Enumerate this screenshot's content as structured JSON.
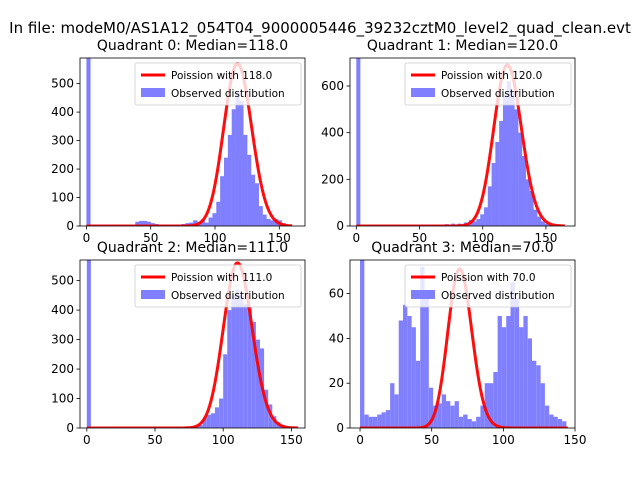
{
  "suptitle": "In file: modeM0/AS1A12_054T04_9000005446_39232cztM0_level2_quad_clean.evt",
  "colors": {
    "poisson": "#ff0000",
    "observed": "#8080ff"
  },
  "chart_data": [
    {
      "type": "bar",
      "title": "Quadrant 0: Median=118.0",
      "median": 118.0,
      "xlim": [
        -5,
        170
      ],
      "ylim": [
        0,
        590
      ],
      "xticks": [
        0,
        50,
        100,
        150
      ],
      "yticks": [
        0,
        100,
        200,
        300,
        400,
        500
      ],
      "bin_width": 3.2,
      "hist": [
        [
          0,
          590
        ],
        [
          35,
          5
        ],
        [
          38,
          15
        ],
        [
          41,
          18
        ],
        [
          44,
          18
        ],
        [
          47,
          15
        ],
        [
          50,
          10
        ],
        [
          53,
          7
        ],
        [
          56,
          5
        ],
        [
          59,
          5
        ],
        [
          62,
          4
        ],
        [
          65,
          4
        ],
        [
          68,
          5
        ],
        [
          71,
          5
        ],
        [
          74,
          7
        ],
        [
          77,
          10
        ],
        [
          80,
          12
        ],
        [
          83,
          20
        ],
        [
          86,
          15
        ],
        [
          89,
          22
        ],
        [
          92,
          12
        ],
        [
          95,
          30
        ],
        [
          98,
          45
        ],
        [
          101,
          85
        ],
        [
          104,
          175
        ],
        [
          107,
          240
        ],
        [
          110,
          320
        ],
        [
          113,
          410
        ],
        [
          116,
          470
        ],
        [
          119,
          440
        ],
        [
          122,
          320
        ],
        [
          125,
          250
        ],
        [
          128,
          180
        ],
        [
          131,
          150
        ],
        [
          134,
          70
        ],
        [
          137,
          40
        ],
        [
          140,
          25
        ],
        [
          143,
          20
        ],
        [
          146,
          25
        ],
        [
          149,
          20
        ],
        [
          152,
          10
        ],
        [
          155,
          5
        ]
      ],
      "poisson_lambda": 118.0,
      "poisson_scale": 570,
      "poisson_range": [
        0,
        160
      ],
      "legend": [
        "Poission with 118.0",
        "Observed distribution"
      ]
    },
    {
      "type": "bar",
      "title": "Quadrant 1: Median=120.0",
      "median": 120.0,
      "xlim": [
        -5,
        173
      ],
      "ylim": [
        0,
        720
      ],
      "xticks": [
        0,
        50,
        100,
        150
      ],
      "yticks": [
        0,
        200,
        400,
        600
      ],
      "bin_width": 3.2,
      "hist": [
        [
          0,
          720
        ],
        [
          52,
          5
        ],
        [
          60,
          5
        ],
        [
          65,
          5
        ],
        [
          70,
          8
        ],
        [
          75,
          10
        ],
        [
          80,
          10
        ],
        [
          85,
          15
        ],
        [
          89,
          25
        ],
        [
          92,
          20
        ],
        [
          95,
          30
        ],
        [
          98,
          50
        ],
        [
          101,
          80
        ],
        [
          104,
          170
        ],
        [
          107,
          270
        ],
        [
          110,
          360
        ],
        [
          113,
          450
        ],
        [
          116,
          560
        ],
        [
          119,
          620
        ],
        [
          122,
          580
        ],
        [
          125,
          500
        ],
        [
          128,
          400
        ],
        [
          131,
          300
        ],
        [
          134,
          200
        ],
        [
          137,
          150
        ],
        [
          140,
          70
        ],
        [
          143,
          40
        ],
        [
          146,
          20
        ],
        [
          149,
          10
        ],
        [
          152,
          5
        ]
      ],
      "poisson_lambda": 120.0,
      "poisson_scale": 690,
      "poisson_range": [
        0,
        165
      ],
      "legend": [
        "Poission with 120.0",
        "Observed distribution"
      ]
    },
    {
      "type": "bar",
      "title": "Quadrant 2: Median=111.0",
      "median": 111.0,
      "xlim": [
        -5,
        160
      ],
      "ylim": [
        0,
        570
      ],
      "xticks": [
        0,
        50,
        100,
        150
      ],
      "yticks": [
        0,
        100,
        200,
        300,
        400,
        500
      ],
      "bin_width": 3.0,
      "hist": [
        [
          0,
          570
        ],
        [
          70,
          3
        ],
        [
          73,
          5
        ],
        [
          76,
          5
        ],
        [
          79,
          5
        ],
        [
          82,
          10
        ],
        [
          85,
          35
        ],
        [
          88,
          45
        ],
        [
          91,
          50
        ],
        [
          94,
          70
        ],
        [
          97,
          100
        ],
        [
          100,
          250
        ],
        [
          103,
          400
        ],
        [
          106,
          450
        ],
        [
          109,
          470
        ],
        [
          112,
          450
        ],
        [
          115,
          420
        ],
        [
          118,
          410
        ],
        [
          121,
          360
        ],
        [
          124,
          300
        ],
        [
          127,
          270
        ],
        [
          130,
          130
        ],
        [
          133,
          80
        ],
        [
          136,
          40
        ],
        [
          139,
          20
        ],
        [
          142,
          10
        ]
      ],
      "poisson_lambda": 111.0,
      "poisson_scale": 560,
      "poisson_range": [
        0,
        155
      ],
      "legend": [
        "Poission with 111.0",
        "Observed distribution"
      ]
    },
    {
      "type": "bar",
      "title": "Quadrant 3: Median=70.0",
      "median": 70.0,
      "xlim": [
        -7,
        150
      ],
      "ylim": [
        0,
        75
      ],
      "xticks": [
        0,
        50,
        100,
        150
      ],
      "yticks": [
        0,
        20,
        40,
        60
      ],
      "bin_width": 3.0,
      "hist": [
        [
          0,
          75
        ],
        [
          3,
          6
        ],
        [
          6,
          5
        ],
        [
          9,
          5
        ],
        [
          12,
          6
        ],
        [
          15,
          7
        ],
        [
          18,
          8
        ],
        [
          21,
          20
        ],
        [
          24,
          15
        ],
        [
          27,
          48
        ],
        [
          30,
          55
        ],
        [
          33,
          50
        ],
        [
          36,
          45
        ],
        [
          39,
          30
        ],
        [
          42,
          72
        ],
        [
          45,
          60
        ],
        [
          48,
          18
        ],
        [
          51,
          10
        ],
        [
          54,
          11
        ],
        [
          57,
          15
        ],
        [
          60,
          12
        ],
        [
          63,
          10
        ],
        [
          66,
          12
        ],
        [
          69,
          5
        ],
        [
          72,
          6
        ],
        [
          75,
          4
        ],
        [
          78,
          3
        ],
        [
          81,
          5
        ],
        [
          84,
          10
        ],
        [
          87,
          20
        ],
        [
          90,
          20
        ],
        [
          93,
          25
        ],
        [
          96,
          50
        ],
        [
          99,
          45
        ],
        [
          102,
          50
        ],
        [
          105,
          65
        ],
        [
          108,
          58
        ],
        [
          111,
          45
        ],
        [
          114,
          50
        ],
        [
          117,
          40
        ],
        [
          120,
          30
        ],
        [
          123,
          28
        ],
        [
          126,
          20
        ],
        [
          129,
          10
        ],
        [
          132,
          6
        ],
        [
          135,
          5
        ],
        [
          138,
          4
        ],
        [
          141,
          3
        ]
      ],
      "poisson_lambda": 70.0,
      "poisson_scale": 71,
      "poisson_range": [
        0,
        145
      ],
      "legend": [
        "Poission with 70.0",
        "Observed distribution"
      ]
    }
  ]
}
